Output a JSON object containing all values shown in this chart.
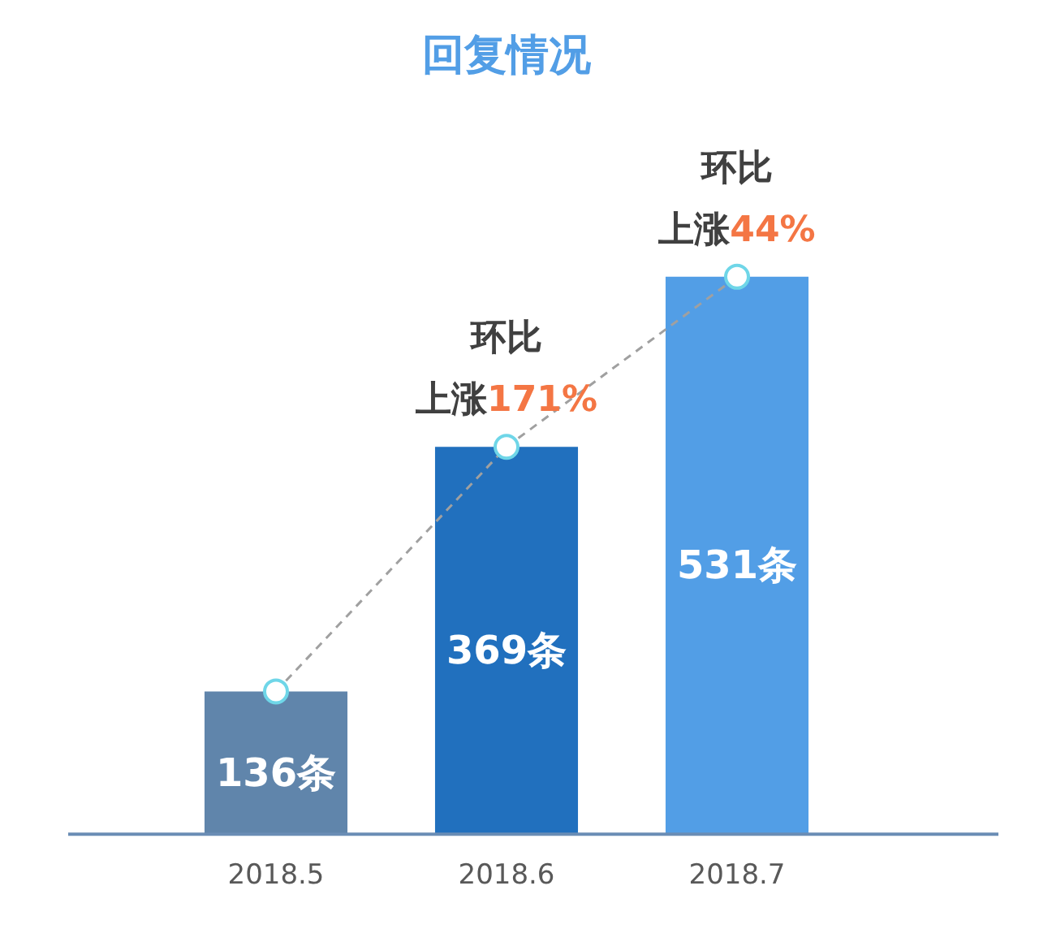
{
  "chart_data": {
    "type": "bar",
    "title": "回复情况",
    "categories": [
      "2018.5",
      "2018.6",
      "2018.7"
    ],
    "series": [
      {
        "colors": [
          "#6085ab",
          "#2170be",
          "#529ee6"
        ],
        "values": [
          136,
          369,
          531
        ],
        "value_labels": [
          "136条",
          "369条",
          "531条"
        ]
      },
      {
        "type": "line",
        "color": "#a0a0a0",
        "values": [
          136,
          369,
          531
        ],
        "marker": "circle",
        "line_style": "dashed"
      }
    ],
    "annotations": [
      {
        "text": "环比",
        "x": "2018.6",
        "y": 369
      },
      {
        "text": "上涨171%",
        "x": "2018.6",
        "y": 369
      },
      {
        "text": "环比",
        "x": "2018.7",
        "y": 531
      },
      {
        "text": "上涨44%",
        "x": "2018.7",
        "y": 531
      }
    ],
    "tick_labels": "x",
    "grid": false,
    "legend": false
  }
}
